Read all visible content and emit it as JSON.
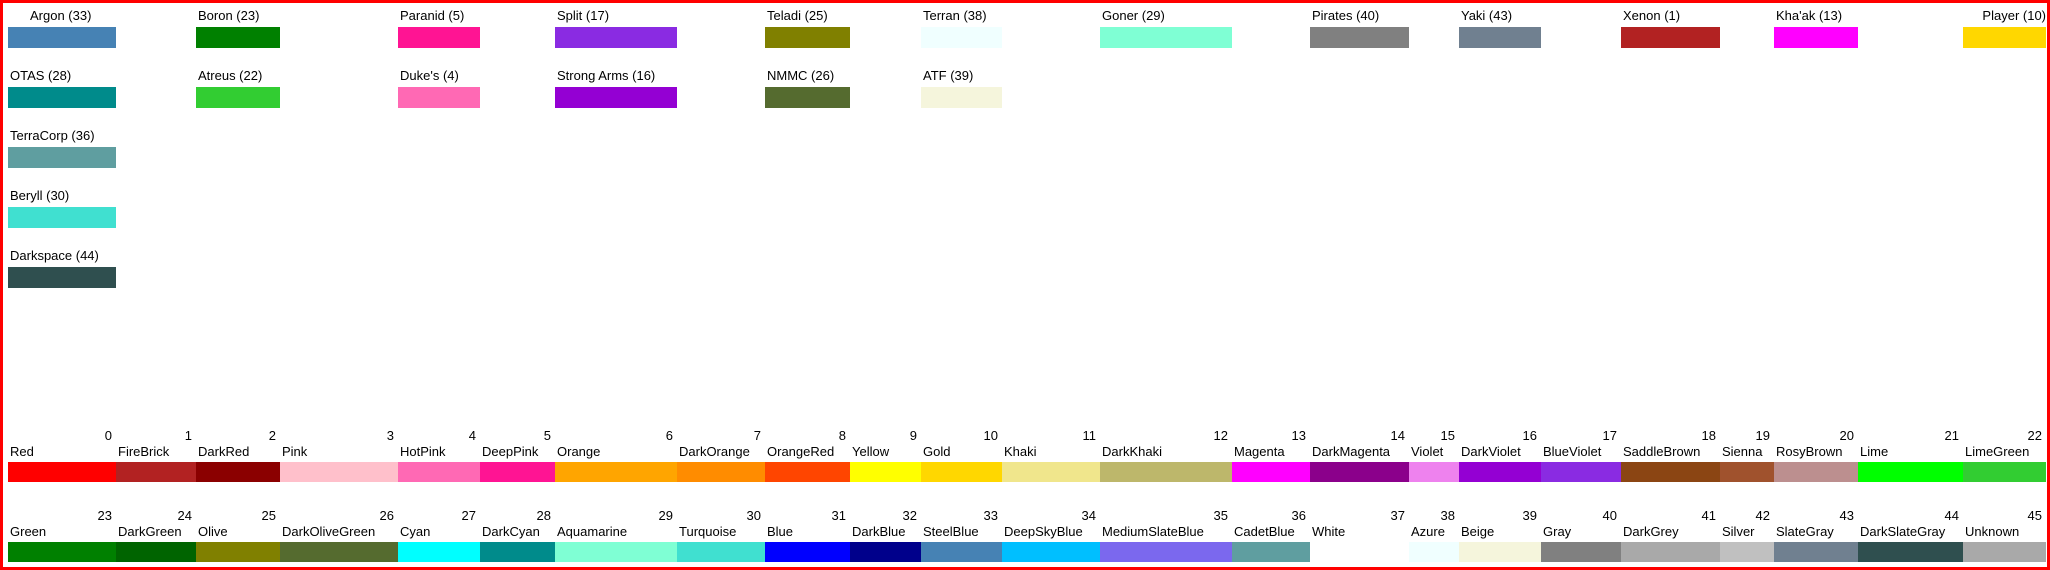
{
  "races": [
    {
      "label": "Argon (33)",
      "color": "#4682B4"
    },
    {
      "label": "Boron (23)",
      "color": "#008000"
    },
    {
      "label": "Paranid (5)",
      "color": "#FF1493"
    },
    {
      "label": "Split (17)",
      "color": "#8A2BE2"
    },
    {
      "label": "Teladi (25)",
      "color": "#808000"
    },
    {
      "label": "Terran (38)",
      "color": "#F0FFFF"
    },
    {
      "label": "Goner (29)",
      "color": "#7FFFD4"
    },
    {
      "label": "Pirates (40)",
      "color": "#808080"
    },
    {
      "label": "Yaki (43)",
      "color": "#708090"
    },
    {
      "label": "Xenon (1)",
      "color": "#B22222"
    },
    {
      "label": "Kha'ak (13)",
      "color": "#FF00FF"
    },
    {
      "label": "Player (10)",
      "color": "#FFD700"
    },
    {
      "label": "OTAS (28)",
      "color": "#008B8B"
    },
    {
      "label": "Atreus (22)",
      "color": "#32CD32"
    },
    {
      "label": "Duke's (4)",
      "color": "#FF69B4"
    },
    {
      "label": "Strong Arms (16)",
      "color": "#9400D3"
    },
    {
      "label": "NMMC (26)",
      "color": "#556B2F"
    },
    {
      "label": "ATF (39)",
      "color": "#F5F5DC"
    },
    {
      "label": "TerraCorp (36)",
      "color": "#5F9EA0"
    },
    {
      "label": "Beryll (30)",
      "color": "#40E0D0"
    },
    {
      "label": "Darkspace (44)",
      "color": "#2F4F4F"
    }
  ],
  "colors": [
    {
      "index": "0",
      "name": "Red",
      "color": "#FF0000"
    },
    {
      "index": "1",
      "name": "FireBrick",
      "color": "#B22222"
    },
    {
      "index": "2",
      "name": "DarkRed",
      "color": "#8B0000"
    },
    {
      "index": "3",
      "name": "Pink",
      "color": "#FFC0CB"
    },
    {
      "index": "4",
      "name": "HotPink",
      "color": "#FF69B4"
    },
    {
      "index": "5",
      "name": "DeepPink",
      "color": "#FF1493"
    },
    {
      "index": "6",
      "name": "Orange",
      "color": "#FFA500"
    },
    {
      "index": "7",
      "name": "DarkOrange",
      "color": "#FF8C00"
    },
    {
      "index": "8",
      "name": "OrangeRed",
      "color": "#FF4500"
    },
    {
      "index": "9",
      "name": "Yellow",
      "color": "#FFFF00"
    },
    {
      "index": "10",
      "name": "Gold",
      "color": "#FFD700"
    },
    {
      "index": "11",
      "name": "Khaki",
      "color": "#F0E68C"
    },
    {
      "index": "12",
      "name": "DarkKhaki",
      "color": "#BDB76B"
    },
    {
      "index": "13",
      "name": "Magenta",
      "color": "#FF00FF"
    },
    {
      "index": "14",
      "name": "DarkMagenta",
      "color": "#8B008B"
    },
    {
      "index": "15",
      "name": "Violet",
      "color": "#EE82EE"
    },
    {
      "index": "16",
      "name": "DarkViolet",
      "color": "#9400D3"
    },
    {
      "index": "17",
      "name": "BlueViolet",
      "color": "#8A2BE2"
    },
    {
      "index": "18",
      "name": "SaddleBrown",
      "color": "#8B4513"
    },
    {
      "index": "19",
      "name": "Sienna",
      "color": "#A0522D"
    },
    {
      "index": "20",
      "name": "RosyBrown",
      "color": "#BC8F8F"
    },
    {
      "index": "21",
      "name": "Lime",
      "color": "#00FF00"
    },
    {
      "index": "22",
      "name": "LimeGreen",
      "color": "#32CD32"
    },
    {
      "index": "23",
      "name": "Green",
      "color": "#008000"
    },
    {
      "index": "24",
      "name": "DarkGreen",
      "color": "#006400"
    },
    {
      "index": "25",
      "name": "Olive",
      "color": "#808000"
    },
    {
      "index": "26",
      "name": "DarkOliveGreen",
      "color": "#556B2F"
    },
    {
      "index": "27",
      "name": "Cyan",
      "color": "#00FFFF"
    },
    {
      "index": "28",
      "name": "DarkCyan",
      "color": "#008B8B"
    },
    {
      "index": "29",
      "name": "Aquamarine",
      "color": "#7FFFD4"
    },
    {
      "index": "30",
      "name": "Turquoise",
      "color": "#40E0D0"
    },
    {
      "index": "31",
      "name": "Blue",
      "color": "#0000FF"
    },
    {
      "index": "32",
      "name": "DarkBlue",
      "color": "#00008B"
    },
    {
      "index": "33",
      "name": "SteelBlue",
      "color": "#4682B4"
    },
    {
      "index": "34",
      "name": "DeepSkyBlue",
      "color": "#00BFFF"
    },
    {
      "index": "35",
      "name": "MediumSlateBlue",
      "color": "#7B68EE"
    },
    {
      "index": "36",
      "name": "CadetBlue",
      "color": "#5F9EA0"
    },
    {
      "index": "37",
      "name": "White",
      "color": "#FFFFFF"
    },
    {
      "index": "38",
      "name": "Azure",
      "color": "#F0FFFF"
    },
    {
      "index": "39",
      "name": "Beige",
      "color": "#F5F5DC"
    },
    {
      "index": "40",
      "name": "Gray",
      "color": "#808080"
    },
    {
      "index": "41",
      "name": "DarkGrey",
      "color": "#A9A9A9"
    },
    {
      "index": "42",
      "name": "Silver",
      "color": "#C0C0C0"
    },
    {
      "index": "43",
      "name": "SlateGray",
      "color": "#708090"
    },
    {
      "index": "44",
      "name": "DarkSlateGray",
      "color": "#2F4F4F"
    },
    {
      "index": "45",
      "name": "Unknown",
      "color": "#A9A9A9"
    }
  ]
}
